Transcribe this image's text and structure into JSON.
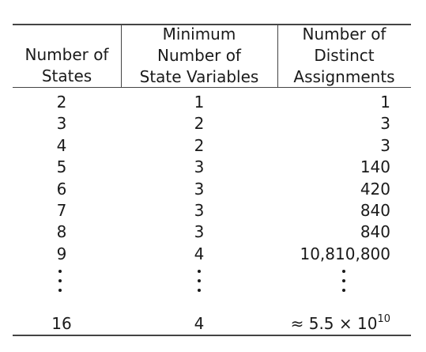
{
  "headers": {
    "states": [
      "Number of",
      "States"
    ],
    "variables": [
      "Minimum",
      "Number of",
      "State Variables"
    ],
    "assignments": [
      "Number of",
      "Distinct",
      "Assignments"
    ]
  },
  "rows": [
    {
      "states": "2",
      "variables": "1",
      "assignments": "1"
    },
    {
      "states": "3",
      "variables": "2",
      "assignments": "3"
    },
    {
      "states": "4",
      "variables": "2",
      "assignments": "3"
    },
    {
      "states": "5",
      "variables": "3",
      "assignments": "140"
    },
    {
      "states": "6",
      "variables": "3",
      "assignments": "420"
    },
    {
      "states": "7",
      "variables": "3",
      "assignments": "840"
    },
    {
      "states": "8",
      "variables": "3",
      "assignments": "840"
    },
    {
      "states": "9",
      "variables": "4",
      "assignments": "10,810,800"
    }
  ],
  "last_row": {
    "states": "16",
    "variables": "4",
    "assignments_prefix": "≈ 5.5 × 10",
    "assignments_exponent": "10"
  }
}
